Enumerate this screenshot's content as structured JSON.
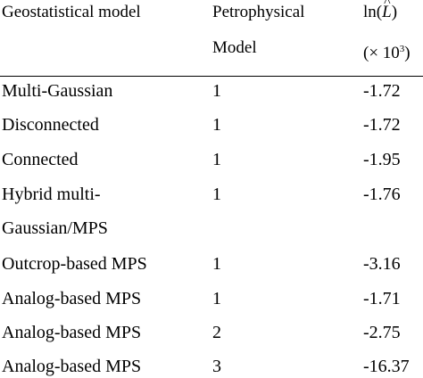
{
  "table": {
    "headers": {
      "col1": "Geostatistical model",
      "col2_line1": "Petrophysical",
      "col2_line2": "Model",
      "col3_prefix": "ln(",
      "col3_symbol": "L",
      "col3_suffix": ")",
      "col3_unit_prefix": "(× 10",
      "col3_unit_exp": "3",
      "col3_unit_suffix": ")"
    },
    "rows": [
      {
        "model": "Multi-Gaussian",
        "petro": "1",
        "value": "-1.72"
      },
      {
        "model": "Disconnected",
        "petro": "1",
        "value": "-1.72"
      },
      {
        "model": "Connected",
        "petro": "1",
        "value": "-1.95"
      },
      {
        "model": "Hybrid multi-",
        "model_cont": "Gaussian/MPS",
        "petro": "1",
        "value": "-1.76"
      },
      {
        "model": "Outcrop-based MPS",
        "petro": "1",
        "value": "-3.16"
      },
      {
        "model": "Analog-based MPS",
        "petro": "1",
        "value": "-1.71"
      },
      {
        "model": "Analog-based MPS",
        "petro": "2",
        "value": "-2.75"
      },
      {
        "model": "Analog-based MPS",
        "petro": "3",
        "value": "-16.37"
      }
    ]
  }
}
